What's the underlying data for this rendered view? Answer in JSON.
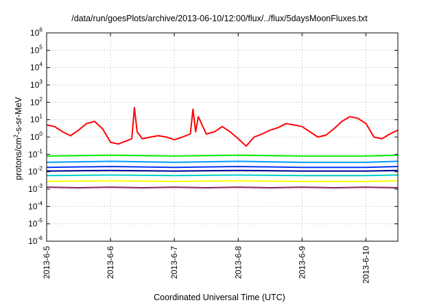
{
  "chart_data": {
    "type": "line",
    "title": "/data/run/goesPlots/archive/2013-06-10/12:00/flux/../flux/5daysMoonFluxes.txt",
    "xlabel": "Coordinated Universal Time (UTC)",
    "ylabel_parts": [
      "protons/cm",
      "2",
      "-s-sr-MeV"
    ],
    "y_scale": "log",
    "ylim": [
      1e-06,
      1000000.0
    ],
    "y_ticks": [
      {
        "base": "10",
        "exp": "-6",
        "value": 1e-06
      },
      {
        "base": "10",
        "exp": "-5",
        "value": 1e-05
      },
      {
        "base": "10",
        "exp": "-4",
        "value": 0.0001
      },
      {
        "base": "10",
        "exp": "-3",
        "value": 0.001
      },
      {
        "base": "10",
        "exp": "-2",
        "value": 0.01
      },
      {
        "base": "10",
        "exp": "-1",
        "value": 0.1
      },
      {
        "base": "10",
        "exp": "0",
        "value": 1
      },
      {
        "base": "10",
        "exp": "1",
        "value": 10
      },
      {
        "base": "10",
        "exp": "2",
        "value": 100
      },
      {
        "base": "10",
        "exp": "3",
        "value": 1000
      },
      {
        "base": "10",
        "exp": "4",
        "value": 10000
      },
      {
        "base": "10",
        "exp": "5",
        "value": 100000
      },
      {
        "base": "10",
        "exp": "6",
        "value": 1000000
      }
    ],
    "xlim": [
      "2013-06-05 00:00",
      "2013-06-10 12:00"
    ],
    "x_ticks": [
      "2013-6-5",
      "2013-6-6",
      "2013-6-7",
      "2013-6-8",
      "2013-6-9",
      "2013-6-10"
    ],
    "grid": true,
    "legend": "none",
    "series": [
      {
        "color": "#ff0000",
        "x": [
          "2013-06-05 00:00",
          "2013-06-05 03:00",
          "2013-06-05 06:00",
          "2013-06-05 09:00",
          "2013-06-05 12:00",
          "2013-06-05 15:00",
          "2013-06-05 18:00",
          "2013-06-05 21:00",
          "2013-06-06 00:00",
          "2013-06-06 03:00",
          "2013-06-06 06:00",
          "2013-06-06 08:00",
          "2013-06-06 09:00",
          "2013-06-06 10:00",
          "2013-06-06 12:00",
          "2013-06-06 15:00",
          "2013-06-06 18:00",
          "2013-06-06 21:00",
          "2013-06-07 00:00",
          "2013-06-07 03:00",
          "2013-06-07 06:00",
          "2013-06-07 07:00",
          "2013-06-07 08:00",
          "2013-06-07 09:00",
          "2013-06-07 12:00",
          "2013-06-07 15:00",
          "2013-06-07 18:00",
          "2013-06-07 21:00",
          "2013-06-08 00:00",
          "2013-06-08 03:00",
          "2013-06-08 06:00",
          "2013-06-08 09:00",
          "2013-06-08 12:00",
          "2013-06-08 15:00",
          "2013-06-08 18:00",
          "2013-06-08 21:00",
          "2013-06-09 00:00",
          "2013-06-09 03:00",
          "2013-06-09 06:00",
          "2013-06-09 09:00",
          "2013-06-09 12:00",
          "2013-06-09 15:00",
          "2013-06-09 18:00",
          "2013-06-09 21:00",
          "2013-06-10 00:00",
          "2013-06-10 03:00",
          "2013-06-10 06:00",
          "2013-06-10 09:00",
          "2013-06-10 12:00"
        ],
        "y": [
          5,
          4,
          2,
          1.2,
          2.5,
          6,
          8,
          3,
          0.5,
          0.4,
          0.6,
          0.8,
          50,
          2,
          0.8,
          1,
          1.2,
          1,
          0.7,
          1,
          1.5,
          40,
          2,
          15,
          1.5,
          2,
          4,
          2,
          0.8,
          0.3,
          1,
          1.5,
          2.5,
          3.5,
          6,
          5,
          4,
          2,
          1,
          1.3,
          3,
          8,
          15,
          12,
          6,
          1,
          0.8,
          1.5,
          2.5
        ]
      },
      {
        "color": "#00ee00",
        "x": [
          "2013-06-05 00:00",
          "2013-06-06 00:00",
          "2013-06-07 00:00",
          "2013-06-08 00:00",
          "2013-06-09 00:00",
          "2013-06-10 00:00",
          "2013-06-10 12:00"
        ],
        "y": [
          0.08,
          0.09,
          0.08,
          0.09,
          0.08,
          0.08,
          0.09
        ]
      },
      {
        "color": "#0099ff",
        "x": [
          "2013-06-05 00:00",
          "2013-06-06 00:00",
          "2013-06-07 00:00",
          "2013-06-08 00:00",
          "2013-06-09 00:00",
          "2013-06-10 00:00",
          "2013-06-10 12:00"
        ],
        "y": [
          0.035,
          0.04,
          0.035,
          0.04,
          0.035,
          0.035,
          0.04
        ]
      },
      {
        "color": "#0033ff",
        "x": [
          "2013-06-05 00:00",
          "2013-06-06 00:00",
          "2013-06-07 00:00",
          "2013-06-08 00:00",
          "2013-06-09 00:00",
          "2013-06-10 00:00",
          "2013-06-10 12:00"
        ],
        "y": [
          0.018,
          0.02,
          0.018,
          0.02,
          0.018,
          0.018,
          0.02
        ]
      },
      {
        "color": "#000099",
        "x": [
          "2013-06-05 00:00",
          "2013-06-06 00:00",
          "2013-06-07 00:00",
          "2013-06-08 00:00",
          "2013-06-09 00:00",
          "2013-06-10 00:00",
          "2013-06-10 12:00"
        ],
        "y": [
          0.011,
          0.012,
          0.011,
          0.012,
          0.011,
          0.011,
          0.012
        ]
      },
      {
        "color": "#00cccc",
        "x": [
          "2013-06-05 00:00",
          "2013-06-06 00:00",
          "2013-06-07 00:00",
          "2013-06-08 00:00",
          "2013-06-09 00:00",
          "2013-06-10 00:00",
          "2013-06-10 12:00"
        ],
        "y": [
          0.006,
          0.0065,
          0.006,
          0.0065,
          0.006,
          0.006,
          0.0065
        ]
      },
      {
        "color": "#ffff00",
        "x": [
          "2013-06-05 00:00",
          "2013-06-06 00:00",
          "2013-06-07 00:00",
          "2013-06-08 00:00",
          "2013-06-09 00:00",
          "2013-06-10 00:00",
          "2013-06-10 12:00"
        ],
        "y": [
          0.0028,
          0.003,
          0.0028,
          0.003,
          0.0028,
          0.0028,
          0.003
        ]
      },
      {
        "color": "#882255",
        "x": [
          "2013-06-05 00:00",
          "2013-06-05 12:00",
          "2013-06-06 00:00",
          "2013-06-06 12:00",
          "2013-06-07 00:00",
          "2013-06-07 12:00",
          "2013-06-08 00:00",
          "2013-06-08 12:00",
          "2013-06-09 00:00",
          "2013-06-09 12:00",
          "2013-06-10 00:00",
          "2013-06-10 12:00"
        ],
        "y": [
          0.0013,
          0.0012,
          0.0013,
          0.0012,
          0.0013,
          0.0012,
          0.0013,
          0.0012,
          0.0013,
          0.0012,
          0.0013,
          0.0012
        ]
      }
    ]
  }
}
